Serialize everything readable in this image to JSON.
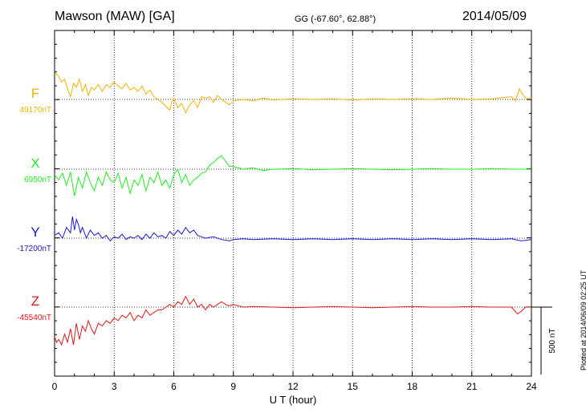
{
  "header": {
    "station": "Mawson (MAW)  [GA]",
    "coords": "GG (-67.60°,  62.88°)",
    "date": "2014/05/09"
  },
  "footer": {
    "plotted": "Plotted at 2014/06/09 02:25 UT"
  },
  "chart_data": {
    "type": "line",
    "xlabel": "U T (hour)",
    "xlim": [
      0,
      24
    ],
    "xticks": [
      0,
      3,
      6,
      9,
      12,
      15,
      18,
      21,
      24
    ],
    "grid": true,
    "scale_bar": {
      "label": "500 nT",
      "value_nT": 500
    },
    "series": [
      {
        "name": "F",
        "baseline": "49170nT",
        "baseline_value": 49170,
        "color": "#f2b400",
        "x": [
          0,
          0.1,
          0.2,
          0.35,
          0.5,
          0.65,
          0.8,
          0.95,
          1.1,
          1.25,
          1.4,
          1.55,
          1.7,
          1.85,
          2.0,
          2.2,
          2.4,
          2.6,
          2.8,
          3.0,
          3.2,
          3.4,
          3.6,
          3.8,
          4.0,
          4.2,
          4.4,
          4.6,
          4.8,
          5.0,
          5.2,
          5.4,
          5.6,
          5.8,
          5.9,
          6.0,
          6.2,
          6.4,
          6.6,
          6.8,
          7.0,
          7.2,
          7.4,
          7.6,
          7.8,
          8.0,
          8.2,
          8.4,
          8.6,
          8.8,
          9.0,
          9.5,
          10,
          10.5,
          11,
          12,
          13,
          14,
          15,
          16,
          17,
          18,
          19,
          20,
          21,
          22,
          23,
          23.2,
          23.4,
          23.5,
          23.7,
          24
        ],
        "values": [
          180,
          190,
          170,
          130,
          150,
          80,
          20,
          120,
          90,
          150,
          60,
          110,
          30,
          90,
          70,
          110,
          60,
          110,
          90,
          130,
          100,
          80,
          120,
          70,
          90,
          60,
          100,
          40,
          70,
          20,
          0,
          -20,
          -50,
          -80,
          -20,
          10,
          -60,
          -30,
          -100,
          -40,
          -10,
          -60,
          20,
          10,
          20,
          -20,
          30,
          0,
          -20,
          -40,
          -10,
          0,
          -10,
          10,
          -5,
          5,
          0,
          5,
          -5,
          5,
          0,
          5,
          0,
          10,
          0,
          5,
          20,
          -10,
          80,
          50,
          10,
          10
        ]
      },
      {
        "name": "X",
        "baseline": "6950nT",
        "baseline_value": 6950,
        "color": "#22ee22",
        "x": [
          0,
          0.2,
          0.4,
          0.6,
          0.8,
          1.0,
          1.2,
          1.4,
          1.6,
          1.8,
          2.0,
          2.2,
          2.4,
          2.6,
          2.8,
          3.0,
          3.2,
          3.4,
          3.6,
          3.8,
          4.0,
          4.2,
          4.4,
          4.6,
          4.8,
          5.0,
          5.2,
          5.4,
          5.6,
          5.8,
          6.0,
          6.2,
          6.4,
          6.6,
          6.8,
          7.0,
          7.2,
          7.4,
          7.6,
          7.8,
          8.0,
          8.2,
          8.4,
          8.6,
          8.8,
          9.0,
          9.5,
          10,
          10.5,
          11,
          12,
          13,
          14,
          15,
          16,
          17,
          18,
          19,
          20,
          21,
          22,
          23,
          24
        ],
        "values": [
          -40,
          -80,
          -30,
          -120,
          -20,
          -200,
          -60,
          -140,
          -20,
          -100,
          -160,
          -60,
          -120,
          -20,
          -80,
          -100,
          -30,
          -140,
          -60,
          -180,
          -80,
          -120,
          -40,
          -160,
          -60,
          -100,
          -20,
          -120,
          -80,
          -140,
          -40,
          0,
          -100,
          -40,
          -120,
          -80,
          -60,
          -30,
          -20,
          30,
          50,
          80,
          100,
          60,
          20,
          20,
          0,
          10,
          -10,
          0,
          5,
          -5,
          0,
          5,
          0,
          -5,
          0,
          5,
          0,
          0,
          5,
          0,
          0
        ]
      },
      {
        "name": "Y",
        "baseline": "-17200nT",
        "baseline_value": -17200,
        "color": "#1a1acc",
        "x": [
          0,
          0.2,
          0.4,
          0.6,
          0.8,
          0.9,
          1.0,
          1.1,
          1.2,
          1.3,
          1.4,
          1.6,
          1.8,
          2.0,
          2.2,
          2.4,
          2.6,
          2.8,
          3.0,
          3.2,
          3.4,
          3.6,
          3.8,
          4.0,
          4.2,
          4.4,
          4.6,
          4.8,
          5.0,
          5.2,
          5.4,
          5.6,
          5.8,
          6.0,
          6.2,
          6.4,
          6.6,
          6.8,
          7.0,
          7.2,
          7.4,
          7.6,
          8.0,
          8.4,
          8.8,
          9.0,
          9.5,
          10,
          11,
          12,
          13,
          14,
          15,
          16,
          17,
          18,
          19,
          20,
          21,
          22,
          23,
          23.5,
          24
        ],
        "values": [
          20,
          40,
          0,
          80,
          40,
          160,
          60,
          140,
          100,
          40,
          80,
          0,
          60,
          20,
          40,
          0,
          20,
          -20,
          10,
          0,
          30,
          -10,
          10,
          0,
          20,
          -10,
          30,
          0,
          40,
          10,
          20,
          0,
          50,
          20,
          60,
          30,
          80,
          40,
          60,
          20,
          10,
          0,
          10,
          -10,
          -20,
          -10,
          -5,
          -10,
          -5,
          -10,
          -5,
          -10,
          -5,
          -10,
          -5,
          -10,
          -5,
          -10,
          -5,
          -10,
          -5,
          -20,
          -10
        ]
      },
      {
        "name": "Z",
        "baseline": "-45540nT",
        "baseline_value": -45540,
        "color": "#e01818",
        "x": [
          0,
          0.1,
          0.2,
          0.35,
          0.5,
          0.65,
          0.8,
          0.95,
          1.1,
          1.25,
          1.4,
          1.55,
          1.7,
          1.85,
          2.0,
          2.2,
          2.4,
          2.6,
          2.8,
          3.0,
          3.2,
          3.4,
          3.6,
          3.8,
          4.0,
          4.2,
          4.4,
          4.6,
          4.8,
          5.0,
          5.2,
          5.4,
          5.6,
          5.8,
          6.0,
          6.2,
          6.4,
          6.6,
          6.8,
          7.0,
          7.2,
          7.4,
          7.6,
          7.8,
          8.0,
          8.2,
          8.4,
          8.6,
          8.8,
          9.0,
          9.5,
          10,
          11,
          12,
          13,
          14,
          15,
          16,
          17,
          18,
          19,
          20,
          21,
          22,
          23,
          23.3,
          23.5,
          23.7,
          24
        ],
        "values": [
          -220,
          -260,
          -240,
          -280,
          -200,
          -260,
          -160,
          -280,
          -120,
          -240,
          -140,
          -180,
          -100,
          -160,
          -200,
          -120,
          -140,
          -100,
          -120,
          -80,
          -100,
          -60,
          -80,
          -40,
          -100,
          -60,
          -80,
          -20,
          -60,
          -40,
          -20,
          -20,
          0,
          20,
          0,
          40,
          20,
          80,
          20,
          60,
          0,
          20,
          -20,
          20,
          0,
          20,
          40,
          20,
          10,
          20,
          0,
          5,
          0,
          -5,
          0,
          5,
          0,
          -5,
          0,
          5,
          0,
          0,
          5,
          0,
          0,
          -50,
          -30,
          0,
          0
        ]
      }
    ]
  }
}
